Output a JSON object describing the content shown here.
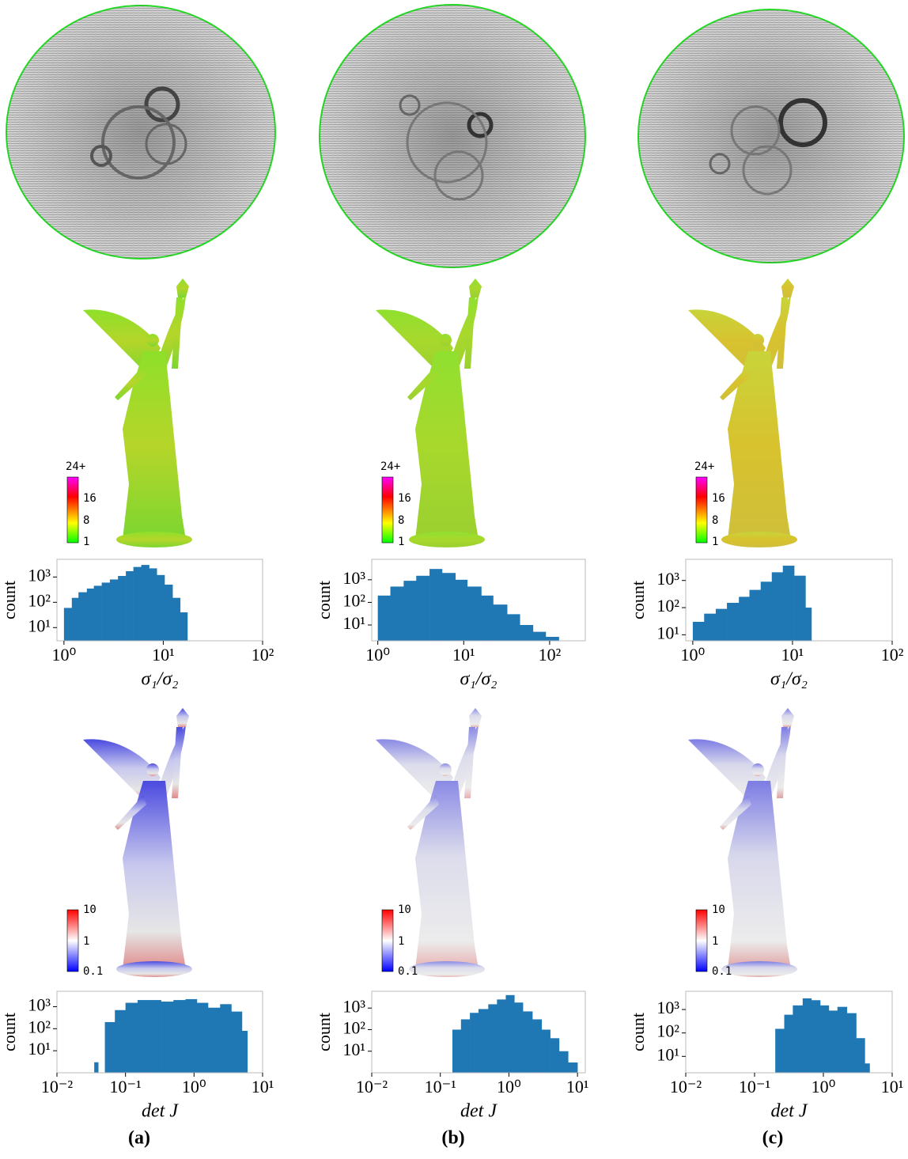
{
  "chart_data": [
    {
      "type": "histogram",
      "xlabel": "σ₁/σ₂",
      "ylabel": "count",
      "color": "#1f77b4",
      "xscale": "log",
      "yscale": "log",
      "bins": [
        1,
        1.2,
        1.4,
        1.7,
        2,
        2.4,
        2.9,
        3.5,
        4.2,
        5,
        6,
        7.2,
        8.6,
        10.3,
        12.4,
        14.8,
        17.5
      ],
      "values": [
        60,
        150,
        250,
        350,
        450,
        600,
        800,
        1100,
        1700,
        2500,
        3000,
        2200,
        1200,
        500,
        150,
        40
      ],
      "xlim": [
        0.85,
        100
      ],
      "ylim": [
        3,
        5000
      ],
      "xticks": [
        {
          "value": 1,
          "label": "10⁰"
        },
        {
          "value": 10,
          "label": "10¹"
        },
        {
          "value": 100,
          "label": "10²"
        }
      ],
      "yticks": [
        {
          "value": 10,
          "label": "10¹"
        },
        {
          "value": 100,
          "label": "10²"
        },
        {
          "value": 1000,
          "label": "10³"
        }
      ]
    },
    {
      "type": "histogram",
      "xlabel": "σ₁/σ₂",
      "ylabel": "count",
      "color": "#1f77b4",
      "xscale": "log",
      "yscale": "log",
      "bins": [
        1,
        1.4,
        2,
        2.8,
        4,
        5.6,
        8,
        11,
        16,
        22,
        32,
        45,
        64,
        90,
        128,
        180
      ],
      "values": [
        200,
        500,
        900,
        1500,
        3000,
        2000,
        1000,
        500,
        200,
        80,
        30,
        10,
        5,
        3,
        2
      ],
      "xlim": [
        0.85,
        260
      ],
      "ylim": [
        2,
        8000
      ],
      "xticks": [
        {
          "value": 1,
          "label": "10⁰"
        },
        {
          "value": 10,
          "label": "10¹"
        },
        {
          "value": 100,
          "label": "10²"
        }
      ],
      "yticks": [
        {
          "value": 10,
          "label": "10¹"
        },
        {
          "value": 100,
          "label": "10²"
        },
        {
          "value": 1000,
          "label": "10³"
        }
      ]
    },
    {
      "type": "histogram",
      "xlabel": "σ₁/σ₂",
      "ylabel": "count",
      "color": "#1f77b4",
      "xscale": "log",
      "yscale": "log",
      "bins": [
        1,
        1.3,
        1.7,
        2.2,
        2.9,
        3.7,
        4.8,
        6.2,
        8,
        10.4,
        13.5,
        15.5
      ],
      "values": [
        30,
        60,
        90,
        150,
        250,
        450,
        900,
        2000,
        3500,
        1500,
        100
      ],
      "xlim": [
        0.85,
        100
      ],
      "ylim": [
        6,
        6000
      ],
      "xticks": [
        {
          "value": 1,
          "label": "10⁰"
        },
        {
          "value": 10,
          "label": "10¹"
        },
        {
          "value": 100,
          "label": "10²"
        }
      ],
      "yticks": [
        {
          "value": 10,
          "label": "10¹"
        },
        {
          "value": 100,
          "label": "10²"
        },
        {
          "value": 1000,
          "label": "10³"
        }
      ]
    },
    {
      "type": "histogram",
      "xlabel": "det J",
      "ylabel": "count",
      "color": "#1f77b4",
      "xscale": "log",
      "yscale": "log",
      "bins": [
        0.035,
        0.04,
        0.05,
        0.07,
        0.1,
        0.15,
        0.22,
        0.33,
        0.5,
        0.75,
        1.1,
        1.6,
        2.4,
        3.5,
        5,
        6
      ],
      "values": [
        3,
        1,
        200,
        700,
        1500,
        2000,
        2000,
        1700,
        2000,
        2200,
        1500,
        900,
        1300,
        600,
        80
      ],
      "xlim": [
        0.01,
        10
      ],
      "ylim": [
        1,
        5000
      ],
      "xticks": [
        {
          "value": 0.01,
          "label": "10⁻²"
        },
        {
          "value": 0.1,
          "label": "10⁻¹"
        },
        {
          "value": 1,
          "label": "10⁰"
        },
        {
          "value": 10,
          "label": "10¹"
        }
      ],
      "yticks": [
        {
          "value": 10,
          "label": "10¹"
        },
        {
          "value": 100,
          "label": "10²"
        },
        {
          "value": 1000,
          "label": "10³"
        }
      ]
    },
    {
      "type": "histogram",
      "xlabel": "det J",
      "ylabel": "count",
      "color": "#1f77b4",
      "xscale": "log",
      "yscale": "log",
      "bins": [
        0.15,
        0.2,
        0.27,
        0.36,
        0.5,
        0.67,
        0.9,
        1.2,
        1.6,
        2.2,
        3,
        4,
        5.4,
        7.3,
        10
      ],
      "values": [
        100,
        300,
        600,
        900,
        1500,
        2500,
        4000,
        1800,
        700,
        300,
        100,
        40,
        10,
        3
      ],
      "xlim": [
        0.01,
        13
      ],
      "ylim": [
        1,
        6000
      ],
      "xticks": [
        {
          "value": 0.01,
          "label": "10⁻²"
        },
        {
          "value": 0.1,
          "label": "10⁻¹"
        },
        {
          "value": 1,
          "label": "10⁰"
        },
        {
          "value": 10,
          "label": "10¹"
        }
      ],
      "yticks": [
        {
          "value": 10,
          "label": "10¹"
        },
        {
          "value": 100,
          "label": "10²"
        },
        {
          "value": 1000,
          "label": "10³"
        }
      ]
    },
    {
      "type": "histogram",
      "xlabel": "det J",
      "ylabel": "count",
      "color": "#1f77b4",
      "xscale": "log",
      "yscale": "log",
      "bins": [
        0.2,
        0.27,
        0.36,
        0.5,
        0.67,
        0.9,
        1.2,
        1.6,
        2.2,
        3,
        4,
        4.7
      ],
      "values": [
        150,
        600,
        1500,
        3000,
        2500,
        1500,
        900,
        1300,
        700,
        60,
        5
      ],
      "xlim": [
        0.01,
        10
      ],
      "ylim": [
        2,
        6000
      ],
      "xticks": [
        {
          "value": 0.01,
          "label": "10⁻²"
        },
        {
          "value": 0.1,
          "label": "10⁻¹"
        },
        {
          "value": 1,
          "label": "10⁰"
        },
        {
          "value": 10,
          "label": "10¹"
        }
      ],
      "yticks": [
        {
          "value": 10,
          "label": "10¹"
        },
        {
          "value": 100,
          "label": "10²"
        },
        {
          "value": 1000,
          "label": "10³"
        }
      ]
    }
  ],
  "panels": [
    {
      "label": "(a)",
      "distortion_colorbar": [
        "24+",
        "16",
        "8",
        "1"
      ],
      "det_colorbar": [
        "10",
        "1",
        "0.1"
      ]
    },
    {
      "label": "(b)",
      "distortion_colorbar": [
        "24+",
        "16",
        "8",
        "1"
      ],
      "det_colorbar": [
        "10",
        "1",
        "0.1"
      ]
    },
    {
      "label": "(c)",
      "distortion_colorbar": [
        "24+",
        "16",
        "8",
        "1"
      ],
      "det_colorbar": [
        "10",
        "1",
        "0.1"
      ]
    }
  ]
}
